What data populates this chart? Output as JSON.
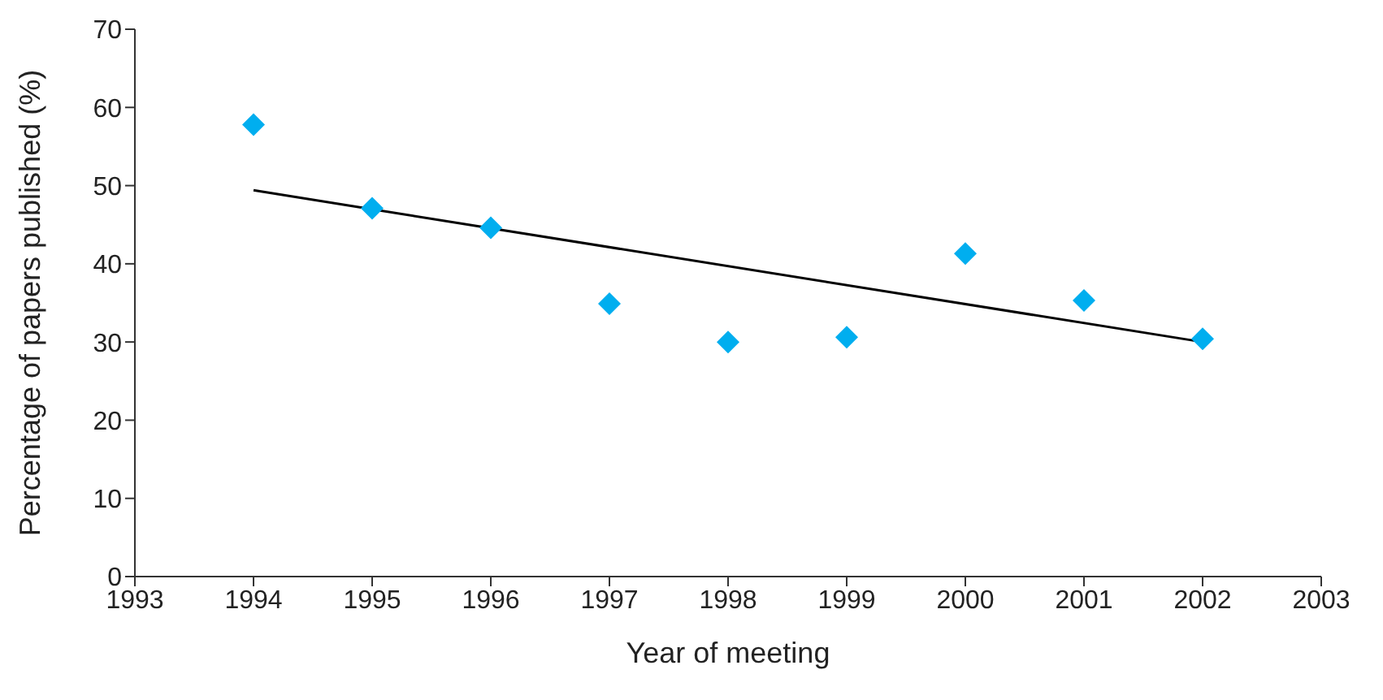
{
  "chart_data": {
    "type": "scatter",
    "xlabel": "Year of meeting",
    "ylabel": "Percentage of papers published (%)",
    "x": [
      1994,
      1995,
      1996,
      1997,
      1998,
      1999,
      2000,
      2001,
      2002
    ],
    "series": [
      {
        "color": "#00aeef",
        "values": [
          57.8,
          47.1,
          44.6,
          34.9,
          30.0,
          30.6,
          41.3,
          35.3,
          30.4
        ],
        "marker": "diamond"
      },
      {
        "type": "line",
        "color": "#000000",
        "x": [
          1994,
          2002
        ],
        "values": [
          49.4,
          30.0
        ]
      }
    ],
    "xlim": [
      1993,
      2003
    ],
    "xticks": [
      1993,
      1994,
      1995,
      1996,
      1997,
      1998,
      1999,
      2000,
      2001,
      2002,
      2003
    ],
    "ylim": [
      0,
      70
    ],
    "yticks": [
      0,
      10,
      20,
      30,
      40,
      50,
      60,
      70
    ],
    "grid": false
  }
}
